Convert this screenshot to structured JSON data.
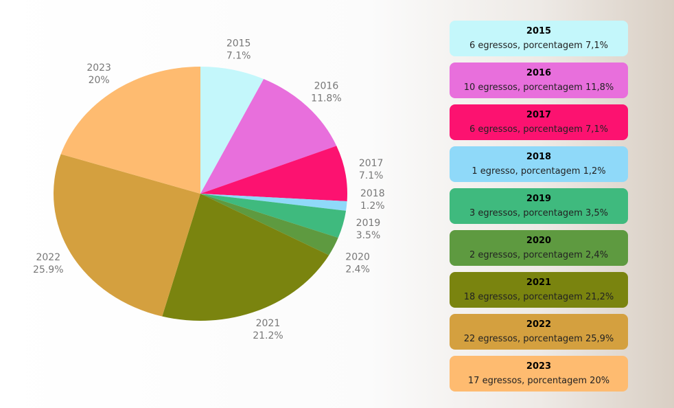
{
  "chart_data": {
    "type": "pie",
    "categories": [
      "2015",
      "2016",
      "2017",
      "2018",
      "2019",
      "2020",
      "2021",
      "2022",
      "2023"
    ],
    "values": [
      7.1,
      11.8,
      7.1,
      1.2,
      3.5,
      2.4,
      21.2,
      25.9,
      20
    ],
    "value_labels": [
      "7.1%",
      "11.8%",
      "7.1%",
      "1.2%",
      "3.5%",
      "2.4%",
      "21.2%",
      "25.9%",
      "20%"
    ],
    "colors": [
      "#c4f7fb",
      "#e86fdc",
      "#fc1270",
      "#8fd9f9",
      "#3fba7e",
      "#5e9a40",
      "#7a840f",
      "#d4a03f",
      "#febb70"
    ],
    "descriptions": [
      "6 egressos, porcentagem 7,1%",
      "10 egressos, porcentagem 11,8%",
      "6 egressos, porcentagem 7,1%",
      "1 egresso, porcentagem 1,2%",
      "3 egressos, porcentagem 3,5%",
      "2 egressos, porcentagem 2,4%",
      "18 egressos, porcentagem 21,2%",
      "22 egressos, porcentagem 25,9%",
      "17 egressos, porcentagem 20%"
    ]
  }
}
